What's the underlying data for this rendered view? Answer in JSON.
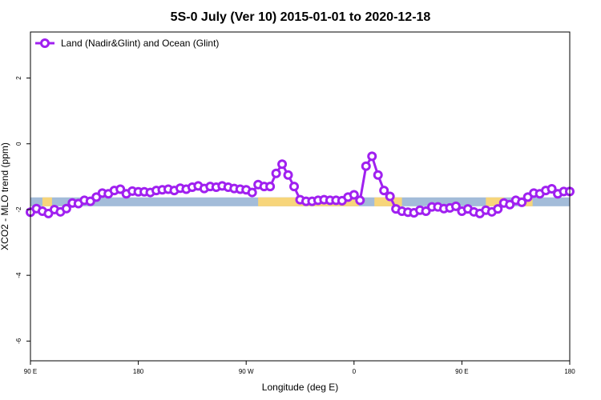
{
  "chart_data": {
    "type": "line",
    "title": "5S-0 July (Ver 10)   2015-01-01 to 2020-12-18",
    "xlabel": "Longitude (deg E)",
    "ylabel": "XCO2 - MLO trend (ppm)",
    "xticks": [
      {
        "label": "90 E",
        "value": 90
      },
      {
        "label": "180",
        "value": 180
      },
      {
        "label": "90 W",
        "value": 270
      },
      {
        "label": "0",
        "value": 360
      },
      {
        "label": "90 E",
        "value": 450
      },
      {
        "label": "180",
        "value": 540
      }
    ],
    "yticks": [
      2,
      0,
      -2,
      -4,
      -6
    ],
    "xlim": [
      90,
      540
    ],
    "ylim": [
      -6.6,
      3.4
    ],
    "grid": false,
    "legend_position": "top-left",
    "colors": {
      "series": "#a020f0",
      "ocean_band": "#a3bcd9",
      "land_band": "#f7d57a"
    },
    "band": {
      "y_top": -1.63,
      "y_bottom": -1.9,
      "land_segments": [
        [
          100,
          108
        ],
        [
          280,
          364
        ],
        [
          377,
          400
        ],
        [
          470,
          485
        ],
        [
          498,
          509
        ]
      ]
    },
    "series": [
      {
        "name": "Land (Nadir&Glint) and Ocean (Glint)",
        "x": [
          90,
          95,
          100,
          105,
          110,
          115,
          120,
          125,
          130,
          135,
          140,
          145,
          150,
          155,
          160,
          165,
          170,
          175,
          180,
          185,
          190,
          195,
          200,
          205,
          210,
          215,
          220,
          225,
          230,
          235,
          240,
          245,
          250,
          255,
          260,
          265,
          270,
          275,
          280,
          285,
          290,
          295,
          300,
          305,
          310,
          315,
          320,
          325,
          330,
          335,
          340,
          345,
          350,
          355,
          360,
          365,
          370,
          375,
          380,
          385,
          390,
          395,
          400,
          405,
          410,
          415,
          420,
          425,
          430,
          435,
          440,
          445,
          450,
          455,
          460,
          465,
          470,
          475,
          480,
          485,
          490,
          495,
          500,
          505,
          510,
          515,
          520,
          525,
          530,
          535,
          540
        ],
        "values": [
          -2.08,
          -1.97,
          -2.05,
          -2.12,
          -2.0,
          -2.07,
          -1.97,
          -1.8,
          -1.82,
          -1.72,
          -1.75,
          -1.62,
          -1.5,
          -1.52,
          -1.42,
          -1.38,
          -1.52,
          -1.44,
          -1.46,
          -1.46,
          -1.48,
          -1.42,
          -1.4,
          -1.38,
          -1.42,
          -1.35,
          -1.38,
          -1.32,
          -1.28,
          -1.36,
          -1.3,
          -1.32,
          -1.28,
          -1.32,
          -1.36,
          -1.38,
          -1.4,
          -1.48,
          -1.24,
          -1.3,
          -1.3,
          -0.9,
          -0.62,
          -0.95,
          -1.3,
          -1.7,
          -1.75,
          -1.75,
          -1.72,
          -1.7,
          -1.72,
          -1.72,
          -1.73,
          -1.62,
          -1.55,
          -1.72,
          -0.68,
          -0.38,
          -0.95,
          -1.42,
          -1.6,
          -1.98,
          -2.05,
          -2.08,
          -2.1,
          -2.02,
          -2.05,
          -1.92,
          -1.92,
          -1.97,
          -1.95,
          -1.9,
          -2.05,
          -1.98,
          -2.07,
          -2.12,
          -2.02,
          -2.07,
          -1.98,
          -1.8,
          -1.85,
          -1.72,
          -1.78,
          -1.62,
          -1.5,
          -1.52,
          -1.42,
          -1.37,
          -1.52,
          -1.45,
          -1.45
        ]
      }
    ]
  }
}
